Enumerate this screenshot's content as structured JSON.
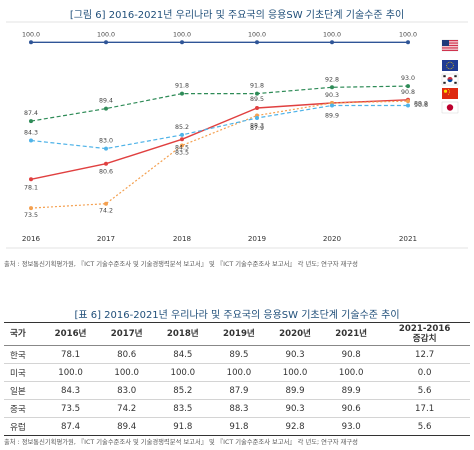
{
  "figure_title": "[그림 6] 2016-2021년 우리나라 및 주요국의 응용SW 기초단계 기술수준 추이",
  "source_note": "출처 : 정보통신기획평가원, 『ICT 기술수준조사 및 기술경쟁력분석 보고서』 및 『ICT 기술수준조사 보고서』 각 년도; 연구자 재구성",
  "table_title": "[표 6] 2016-2021년 우리나라 및 주요국의 응용SW 기초단계 기술수준 추이",
  "table_source_note": "출처 : 정보통신기획평가원, 『ICT 기술수준조사 및 기술경쟁력분석 보고서』 및 『ICT 기술수준조사 보고서』 각 년도; 연구자 재구성",
  "flags": [
    "us-flag",
    "eu-flag",
    "korea-flag",
    "china-flag",
    "japan-flag"
  ],
  "chart_data": {
    "type": "line",
    "x": [
      "2016",
      "2017",
      "2018",
      "2019",
      "2020",
      "2021"
    ],
    "ylim": [
      70,
      101
    ],
    "grid": false,
    "legend": "flags at right",
    "series": [
      {
        "key": "usa",
        "values": [
          100.0,
          100.0,
          100.0,
          100.0,
          100.0,
          100.0
        ],
        "color": "#2f5597",
        "style": "solid",
        "flag": "us-flag"
      },
      {
        "key": "europe",
        "values": [
          87.4,
          89.4,
          91.8,
          91.8,
          92.8,
          93.0
        ],
        "color": "#2e8b57",
        "style": "dashed",
        "flag": "eu-flag"
      },
      {
        "key": "korea",
        "values": [
          78.1,
          80.6,
          84.5,
          89.5,
          90.3,
          90.8
        ],
        "color": "#e04040",
        "style": "solid",
        "flag": "korea-flag"
      },
      {
        "key": "china",
        "values": [
          73.5,
          74.2,
          83.5,
          88.3,
          90.3,
          90.6
        ],
        "color": "#f4a050",
        "style": "dotted",
        "flag": "china-flag"
      },
      {
        "key": "japan",
        "values": [
          84.3,
          83.0,
          85.2,
          87.9,
          89.9,
          89.9
        ],
        "color": "#4fb3e8",
        "style": "dashed",
        "flag": "japan-flag"
      }
    ],
    "labels": {
      "usa": [
        "100.0",
        "100.0",
        "100.0",
        "100.0",
        "100.0",
        "100.0"
      ],
      "europe": [
        "87.4",
        "89.4",
        "91.8",
        "91.8",
        "92.8",
        "93.0"
      ],
      "korea": [
        "78.1",
        "80.6",
        "84.5",
        "89.5",
        "90.3",
        "90.8"
      ],
      "china": [
        "73.5",
        "74.2",
        "83.5",
        "88.3",
        "",
        "90.6"
      ],
      "japan": [
        "84.3",
        "83.0",
        "85.2",
        "87.9",
        "89.9",
        "89.9"
      ]
    }
  },
  "table": {
    "headers": [
      "국가",
      "2016년",
      "2017년",
      "2018년",
      "2019년",
      "2020년",
      "2021년",
      "2021-2016\n증감치"
    ],
    "rows": [
      [
        "한국",
        "78.1",
        "80.6",
        "84.5",
        "89.5",
        "90.3",
        "90.8",
        "12.7"
      ],
      [
        "미국",
        "100.0",
        "100.0",
        "100.0",
        "100.0",
        "100.0",
        "100.0",
        "0.0"
      ],
      [
        "일본",
        "84.3",
        "83.0",
        "85.2",
        "87.9",
        "89.9",
        "89.9",
        "5.6"
      ],
      [
        "중국",
        "73.5",
        "74.2",
        "83.5",
        "88.3",
        "90.3",
        "90.6",
        "17.1"
      ],
      [
        "유럽",
        "87.4",
        "89.4",
        "91.8",
        "91.8",
        "92.8",
        "93.0",
        "5.6"
      ]
    ]
  }
}
